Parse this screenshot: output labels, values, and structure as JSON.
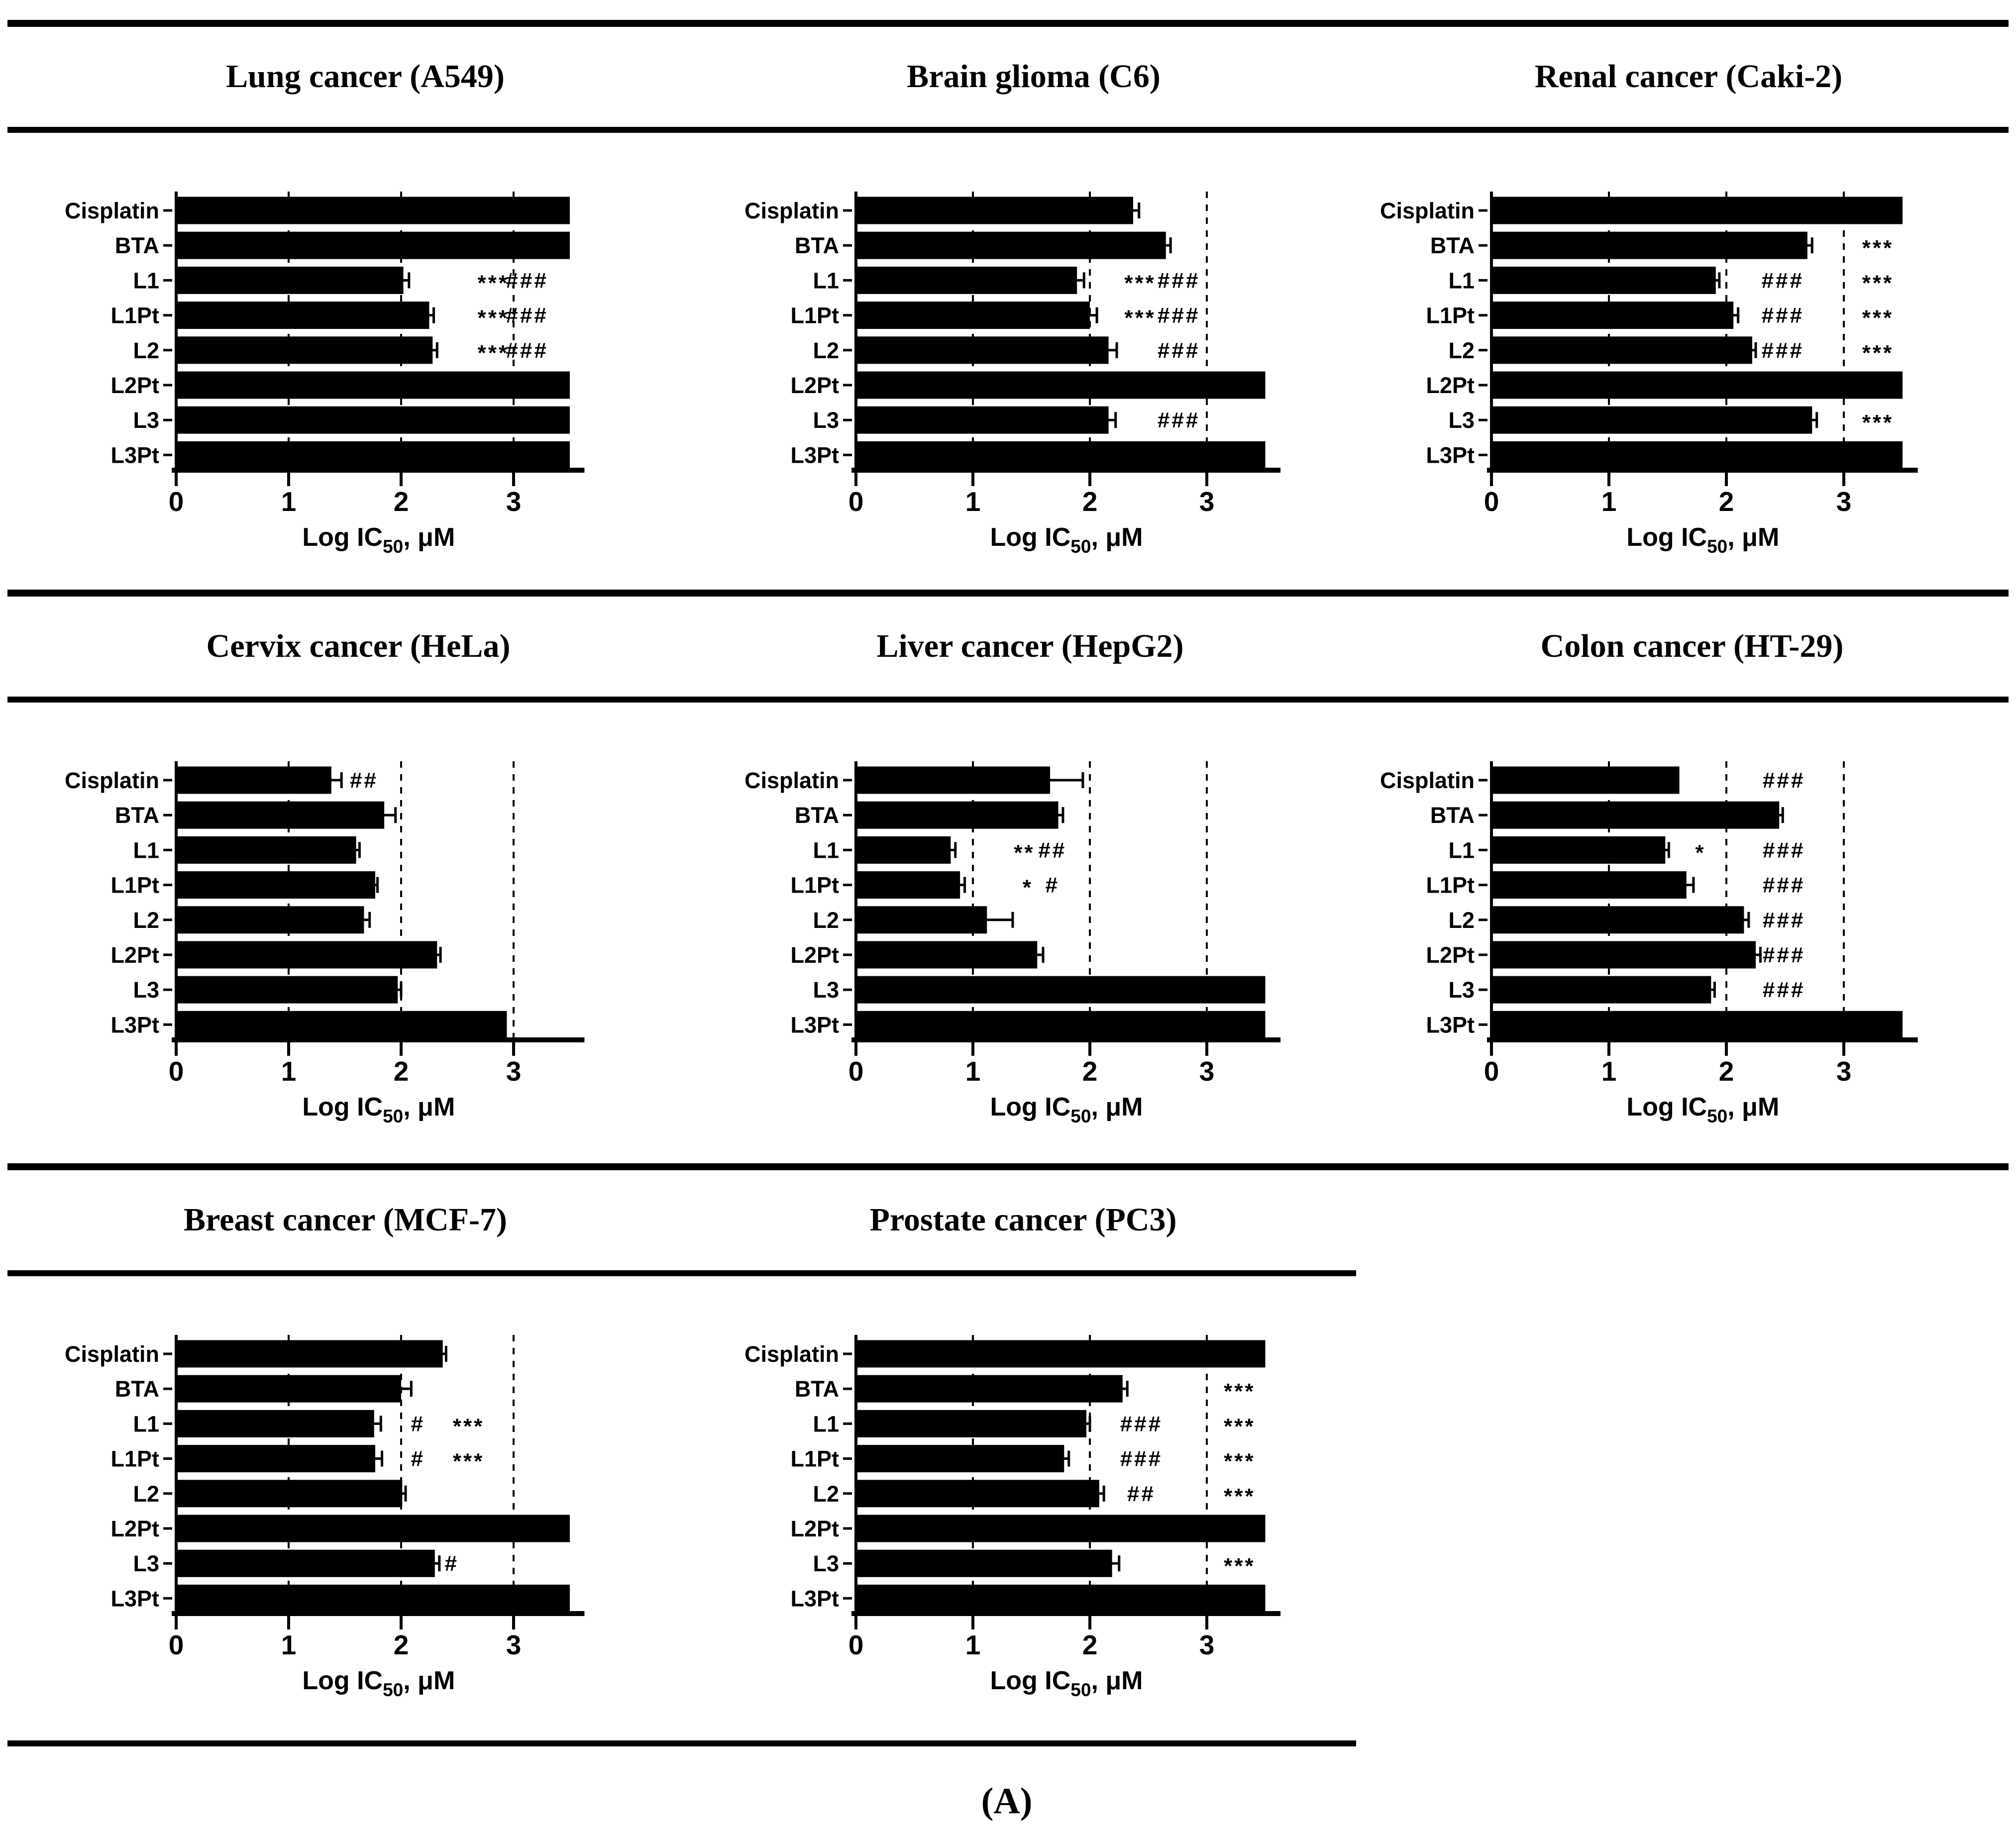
{
  "figure_label": "(A)",
  "background": "#ffffff",
  "colors": {
    "bar": "#000000",
    "text": "#000000",
    "grid": "#000000"
  },
  "axis": {
    "label_main": "Log IC",
    "label_sub": "50",
    "label_unit": ", μM",
    "full_label": "Log IC50, μM"
  },
  "categories": [
    "Cisplatin",
    "BTA",
    "L1",
    "L1Pt",
    "L2",
    "L2Pt",
    "L3",
    "L3Pt"
  ],
  "chart_data": [
    {
      "type": "bar",
      "orientation": "horizontal",
      "title": "Lung cancer (A549)",
      "cell_line": "A549",
      "xlabel": "Log IC50, μM",
      "xlim": [
        0,
        3.63
      ],
      "xticks": [
        0,
        1,
        2,
        3
      ],
      "gridlines": [
        1,
        2,
        3
      ],
      "bars": [
        {
          "label": "Cisplatin",
          "value": 3.5,
          "err": 0,
          "sig": []
        },
        {
          "label": "BTA",
          "value": 3.5,
          "err": 0,
          "sig": []
        },
        {
          "label": "L1",
          "value": 2.02,
          "err": 0.05,
          "sig": [
            {
              "t": "***",
              "x": 2.82
            },
            {
              "t": "###",
              "x": 3.12
            }
          ]
        },
        {
          "label": "L1Pt",
          "value": 2.25,
          "err": 0.04,
          "sig": [
            {
              "t": "***",
              "x": 2.82
            },
            {
              "t": "###",
              "x": 3.12
            }
          ]
        },
        {
          "label": "L2",
          "value": 2.28,
          "err": 0.04,
          "sig": [
            {
              "t": "***",
              "x": 2.82
            },
            {
              "t": "###",
              "x": 3.12
            }
          ]
        },
        {
          "label": "L2Pt",
          "value": 3.5,
          "err": 0,
          "sig": []
        },
        {
          "label": "L3",
          "value": 3.5,
          "err": 0,
          "sig": []
        },
        {
          "label": "L3Pt",
          "value": 3.5,
          "err": 0,
          "sig": []
        }
      ]
    },
    {
      "type": "bar",
      "orientation": "horizontal",
      "title": "Brain glioma (C6)",
      "cell_line": "C6",
      "xlabel": "Log IC50, μM",
      "xlim": [
        0,
        3.63
      ],
      "xticks": [
        0,
        1,
        2,
        3
      ],
      "gridlines": [
        1,
        2,
        3
      ],
      "bars": [
        {
          "label": "Cisplatin",
          "value": 2.37,
          "err": 0.05,
          "sig": []
        },
        {
          "label": "BTA",
          "value": 2.65,
          "err": 0.04,
          "sig": []
        },
        {
          "label": "L1",
          "value": 1.89,
          "err": 0.06,
          "sig": [
            {
              "t": "***",
              "x": 2.43
            },
            {
              "t": "###",
              "x": 2.76
            }
          ]
        },
        {
          "label": "L1Pt",
          "value": 2.0,
          "err": 0.06,
          "sig": [
            {
              "t": "***",
              "x": 2.43
            },
            {
              "t": "###",
              "x": 2.76
            }
          ]
        },
        {
          "label": "L2",
          "value": 2.16,
          "err": 0.07,
          "sig": [
            {
              "t": "###",
              "x": 2.76
            }
          ]
        },
        {
          "label": "L2Pt",
          "value": 3.5,
          "err": 0,
          "sig": []
        },
        {
          "label": "L3",
          "value": 2.16,
          "err": 0.06,
          "sig": [
            {
              "t": "###",
              "x": 2.76
            }
          ]
        },
        {
          "label": "L3Pt",
          "value": 3.5,
          "err": 0,
          "sig": []
        }
      ]
    },
    {
      "type": "bar",
      "orientation": "horizontal",
      "title": "Renal cancer (Caki-2)",
      "cell_line": "Caki-2",
      "xlabel": "Log IC50, μM",
      "xlim": [
        0,
        3.63
      ],
      "xticks": [
        0,
        1,
        2,
        3
      ],
      "gridlines": [
        1,
        2,
        3
      ],
      "bars": [
        {
          "label": "Cisplatin",
          "value": 3.5,
          "err": 0,
          "sig": []
        },
        {
          "label": "BTA",
          "value": 2.69,
          "err": 0.04,
          "sig": [
            {
              "t": "***",
              "x": 3.29
            }
          ]
        },
        {
          "label": "L1",
          "value": 1.91,
          "err": 0.03,
          "sig": [
            {
              "t": "###",
              "x": 2.48
            },
            {
              "t": "***",
              "x": 3.29
            }
          ]
        },
        {
          "label": "L1Pt",
          "value": 2.06,
          "err": 0.04,
          "sig": [
            {
              "t": "###",
              "x": 2.48
            },
            {
              "t": "***",
              "x": 3.29
            }
          ]
        },
        {
          "label": "L2",
          "value": 2.22,
          "err": 0.03,
          "sig": [
            {
              "t": "###",
              "x": 2.48
            },
            {
              "t": "***",
              "x": 3.29
            }
          ]
        },
        {
          "label": "L2Pt",
          "value": 3.5,
          "err": 0,
          "sig": []
        },
        {
          "label": "L3",
          "value": 2.73,
          "err": 0.04,
          "sig": [
            {
              "t": "***",
              "x": 3.29
            }
          ]
        },
        {
          "label": "L3Pt",
          "value": 3.5,
          "err": 0,
          "sig": []
        }
      ]
    },
    {
      "type": "bar",
      "orientation": "horizontal",
      "title": "Cervix cancer (HeLa)",
      "cell_line": "HeLa",
      "xlabel": "Log IC50, μM",
      "xlim": [
        0,
        3.63
      ],
      "xticks": [
        0,
        1,
        2,
        3
      ],
      "gridlines": [
        1,
        2,
        3
      ],
      "bars": [
        {
          "label": "Cisplatin",
          "value": 1.38,
          "err": 0.09,
          "sig": [
            {
              "t": "##",
              "x": 1.67
            }
          ]
        },
        {
          "label": "BTA",
          "value": 1.85,
          "err": 0.1,
          "sig": []
        },
        {
          "label": "L1",
          "value": 1.6,
          "err": 0.03,
          "sig": []
        },
        {
          "label": "L1Pt",
          "value": 1.77,
          "err": 0.02,
          "sig": []
        },
        {
          "label": "L2",
          "value": 1.67,
          "err": 0.05,
          "sig": []
        },
        {
          "label": "L2Pt",
          "value": 2.32,
          "err": 0.03,
          "sig": []
        },
        {
          "label": "L3",
          "value": 1.97,
          "err": 0.03,
          "sig": []
        },
        {
          "label": "L3Pt",
          "value": 2.94,
          "err": 0,
          "sig": []
        }
      ]
    },
    {
      "type": "bar",
      "orientation": "horizontal",
      "title": "Liver cancer (HepG2)",
      "cell_line": "HepG2",
      "xlabel": "Log IC50, μM",
      "xlim": [
        0,
        3.63
      ],
      "xticks": [
        0,
        1,
        2,
        3
      ],
      "gridlines": [
        1,
        2,
        3
      ],
      "bars": [
        {
          "label": "Cisplatin",
          "value": 1.66,
          "err": 0.28,
          "sig": []
        },
        {
          "label": "BTA",
          "value": 1.73,
          "err": 0.04,
          "sig": []
        },
        {
          "label": "L1",
          "value": 0.81,
          "err": 0.04,
          "sig": [
            {
              "t": "**",
              "x": 1.44
            },
            {
              "t": "##",
              "x": 1.68
            }
          ]
        },
        {
          "label": "L1Pt",
          "value": 0.89,
          "err": 0.04,
          "sig": [
            {
              "t": "*",
              "x": 1.47
            },
            {
              "t": "#",
              "x": 1.68
            }
          ]
        },
        {
          "label": "L2",
          "value": 1.12,
          "err": 0.22,
          "sig": []
        },
        {
          "label": "L2Pt",
          "value": 1.55,
          "err": 0.05,
          "sig": []
        },
        {
          "label": "L3",
          "value": 3.5,
          "err": 0,
          "sig": []
        },
        {
          "label": "L3Pt",
          "value": 3.5,
          "err": 0,
          "sig": []
        }
      ]
    },
    {
      "type": "bar",
      "orientation": "horizontal",
      "title": "Colon cancer (HT-29)",
      "cell_line": "HT-29",
      "xlabel": "Log IC50, μM",
      "xlim": [
        0,
        3.63
      ],
      "xticks": [
        0,
        1,
        2,
        3
      ],
      "gridlines": [
        1,
        2,
        3
      ],
      "bars": [
        {
          "label": "Cisplatin",
          "value": 1.6,
          "err": 0,
          "sig": [
            {
              "t": "###",
              "x": 2.49
            }
          ]
        },
        {
          "label": "BTA",
          "value": 2.45,
          "err": 0.03,
          "sig": []
        },
        {
          "label": "L1",
          "value": 1.48,
          "err": 0.03,
          "sig": [
            {
              "t": "*",
              "x": 1.78
            },
            {
              "t": "###",
              "x": 2.49
            }
          ]
        },
        {
          "label": "L1Pt",
          "value": 1.66,
          "err": 0.06,
          "sig": [
            {
              "t": "###",
              "x": 2.49
            }
          ]
        },
        {
          "label": "L2",
          "value": 2.15,
          "err": 0.04,
          "sig": [
            {
              "t": "###",
              "x": 2.49
            }
          ]
        },
        {
          "label": "L2Pt",
          "value": 2.25,
          "err": 0.04,
          "sig": [
            {
              "t": "###",
              "x": 2.49
            }
          ]
        },
        {
          "label": "L3",
          "value": 1.87,
          "err": 0.03,
          "sig": [
            {
              "t": "###",
              "x": 2.49
            }
          ]
        },
        {
          "label": "L3Pt",
          "value": 3.5,
          "err": 0,
          "sig": []
        }
      ]
    },
    {
      "type": "bar",
      "orientation": "horizontal",
      "title": "Breast cancer (MCF-7)",
      "cell_line": "MCF-7",
      "xlabel": "Log IC50, μM",
      "xlim": [
        0,
        3.63
      ],
      "xticks": [
        0,
        1,
        2,
        3
      ],
      "gridlines": [
        1,
        2,
        3
      ],
      "bars": [
        {
          "label": "Cisplatin",
          "value": 2.37,
          "err": 0.03,
          "sig": []
        },
        {
          "label": "BTA",
          "value": 2.0,
          "err": 0.09,
          "sig": []
        },
        {
          "label": "L1",
          "value": 1.76,
          "err": 0.06,
          "sig": [
            {
              "t": "#",
              "x": 2.15
            },
            {
              "t": "***",
              "x": 2.6
            }
          ]
        },
        {
          "label": "L1Pt",
          "value": 1.77,
          "err": 0.06,
          "sig": [
            {
              "t": "#",
              "x": 2.15
            },
            {
              "t": "***",
              "x": 2.6
            }
          ]
        },
        {
          "label": "L2",
          "value": 2.01,
          "err": 0.03,
          "sig": []
        },
        {
          "label": "L2Pt",
          "value": 3.5,
          "err": 0,
          "sig": []
        },
        {
          "label": "L3",
          "value": 2.3,
          "err": 0.04,
          "sig": [
            {
              "t": "#",
              "x": 2.45
            }
          ]
        },
        {
          "label": "L3Pt",
          "value": 3.5,
          "err": 0,
          "sig": []
        }
      ]
    },
    {
      "type": "bar",
      "orientation": "horizontal",
      "title": "Prostate cancer (PC3)",
      "cell_line": "PC3",
      "xlabel": "Log IC50, μM",
      "xlim": [
        0,
        3.63
      ],
      "xticks": [
        0,
        1,
        2,
        3
      ],
      "gridlines": [
        1,
        2,
        3
      ],
      "bars": [
        {
          "label": "Cisplatin",
          "value": 3.5,
          "err": 0,
          "sig": []
        },
        {
          "label": "BTA",
          "value": 2.28,
          "err": 0.04,
          "sig": [
            {
              "t": "***",
              "x": 3.28
            }
          ]
        },
        {
          "label": "L1",
          "value": 1.97,
          "err": 0.03,
          "sig": [
            {
              "t": "###",
              "x": 2.44
            },
            {
              "t": "***",
              "x": 3.28
            }
          ]
        },
        {
          "label": "L1Pt",
          "value": 1.78,
          "err": 0.04,
          "sig": [
            {
              "t": "###",
              "x": 2.44
            },
            {
              "t": "***",
              "x": 3.28
            }
          ]
        },
        {
          "label": "L2",
          "value": 2.08,
          "err": 0.04,
          "sig": [
            {
              "t": "##",
              "x": 2.44
            },
            {
              "t": "***",
              "x": 3.28
            }
          ]
        },
        {
          "label": "L2Pt",
          "value": 3.5,
          "err": 0,
          "sig": []
        },
        {
          "label": "L3",
          "value": 2.19,
          "err": 0.06,
          "sig": [
            {
              "t": "***",
              "x": 3.28
            }
          ]
        },
        {
          "label": "L3Pt",
          "value": 3.5,
          "err": 0,
          "sig": []
        }
      ]
    }
  ]
}
